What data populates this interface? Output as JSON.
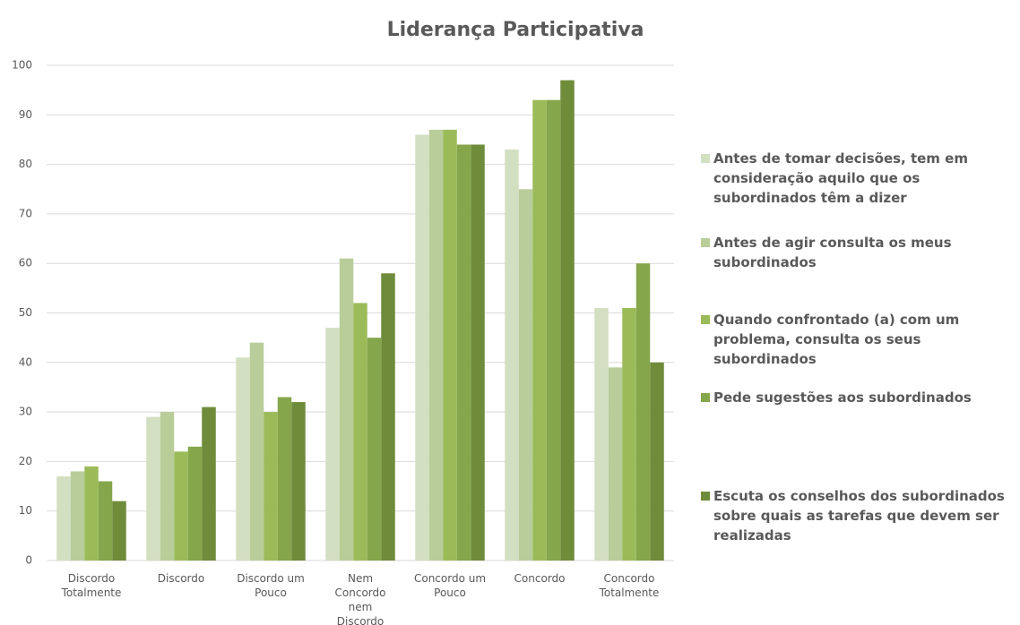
{
  "chart_data": {
    "type": "bar",
    "title": "Liderança Participativa",
    "categories": [
      "Discordo Totalmente",
      "Discordo",
      "Discordo um Pouco",
      "Nem Concordo nem Discordo",
      "Concordo um Pouco",
      "Concordo",
      "Concordo Totalmente"
    ],
    "series": [
      {
        "name": "Antes de tomar decisões, tem em consideração aquilo que os subordinados têm a dizer",
        "color": "#d3dfc1",
        "values": [
          17,
          29,
          41,
          47,
          86,
          83,
          51
        ]
      },
      {
        "name": "Antes de agir consulta os meus subordinados",
        "color": "#b8cd9a",
        "values": [
          18,
          30,
          44,
          61,
          87,
          75,
          39
        ]
      },
      {
        "name": "Quando confrontado (a) com um problema, consulta os seus subordinados",
        "color": "#9bbb59",
        "values": [
          19,
          22,
          30,
          52,
          87,
          93,
          51
        ]
      },
      {
        "name": "Pede sugestões aos subordinados",
        "color": "#86a64b",
        "values": [
          16,
          23,
          33,
          45,
          84,
          93,
          60
        ]
      },
      {
        "name": "Escuta os conselhos dos subordinados sobre quais as tarefas que devem ser realizadas",
        "color": "#6f8c3b",
        "values": [
          12,
          31,
          32,
          58,
          84,
          97,
          40
        ]
      }
    ],
    "ylim": [
      0,
      100
    ],
    "yticks": [
      0,
      10,
      20,
      30,
      40,
      50,
      60,
      70,
      80,
      90,
      100
    ],
    "grid": true,
    "legend": "right"
  }
}
